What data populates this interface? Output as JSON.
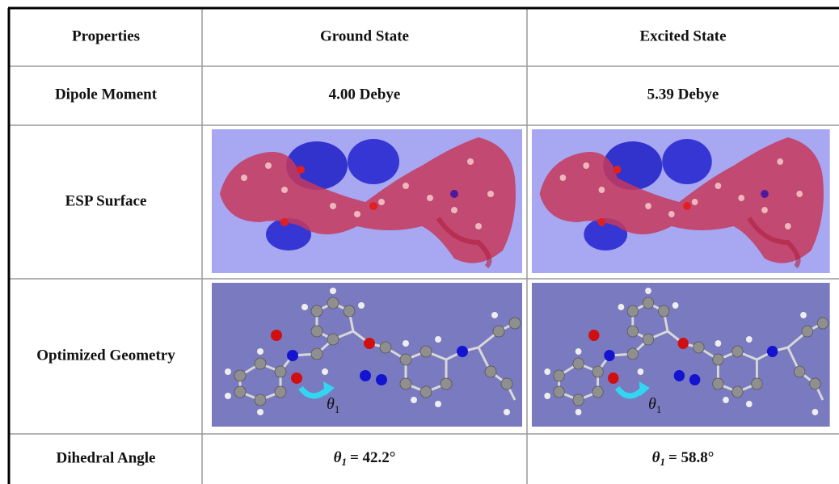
{
  "table": {
    "header": [
      "Properties",
      "Ground State",
      "Excited State"
    ],
    "rows": [
      {
        "label": "Dipole Moment",
        "cells": [
          "4.00 Debye",
          "5.39 Debye"
        ]
      },
      {
        "label": "ESP Surface"
      },
      {
        "label": "Optimized Geometry",
        "annotations": [
          {
            "symbol": "θ",
            "subscript": "1"
          },
          {
            "symbol": "θ",
            "subscript": "1"
          }
        ]
      },
      {
        "label": "Dihedral Angle",
        "cells": [
          {
            "symbol": "θ",
            "subscript": "1",
            "text": "= 42.2°"
          },
          {
            "symbol": "θ",
            "subscript": "1",
            "text": "= 58.8°"
          }
        ]
      }
    ]
  }
}
